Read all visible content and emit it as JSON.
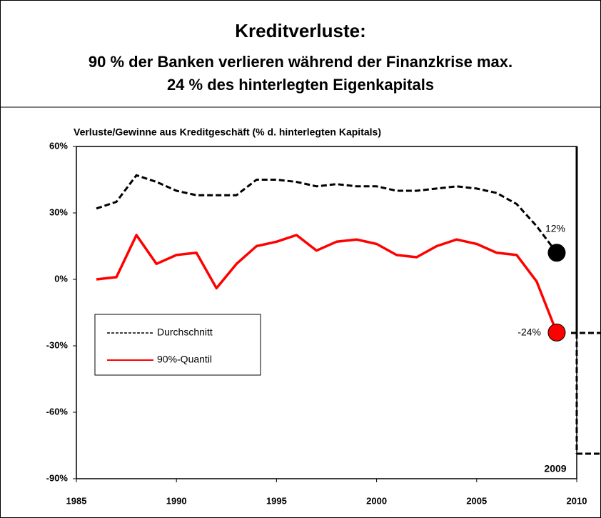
{
  "chart_data": {
    "type": "line",
    "title": "Kreditverluste:",
    "subtitle": [
      "90 % der Banken verlieren während der Finanzkrise max.",
      "24 % des hinterlegten Eigenkapitals"
    ],
    "y_axis_label": "Verluste/Gewinne aus Kreditgeschäft (% d. hinterlegten Kapitals)",
    "x": [
      1986,
      1987,
      1988,
      1989,
      1990,
      1991,
      1992,
      1993,
      1994,
      1995,
      1996,
      1997,
      1998,
      1999,
      2000,
      2001,
      2002,
      2003,
      2004,
      2005,
      2006,
      2007,
      2008,
      2009
    ],
    "series": [
      {
        "name": "Durchschnitt",
        "color": "#000000",
        "dash": true,
        "values": [
          32,
          35,
          47,
          44,
          40,
          38,
          38,
          38,
          45,
          45,
          44,
          42,
          43,
          42,
          42,
          40,
          40,
          41,
          42,
          41,
          39,
          34,
          24,
          12
        ]
      },
      {
        "name": "90%-Quantil",
        "color": "#ff0000",
        "dash": false,
        "values": [
          0,
          1,
          20,
          7,
          11,
          12,
          -4,
          7,
          15,
          17,
          20,
          13,
          17,
          18,
          16,
          11,
          10,
          15,
          18,
          16,
          12,
          11,
          -1,
          -24
        ]
      }
    ],
    "annotations": [
      "12%",
      "-24%",
      "2009"
    ],
    "xlim": [
      1985,
      2010
    ],
    "xticks": [
      1985,
      1990,
      1995,
      2000,
      2005,
      2010
    ],
    "ylim": [
      -90,
      60
    ],
    "yticks": [
      {
        "value": 60,
        "label": "60%"
      },
      {
        "value": 30,
        "label": "30%"
      },
      {
        "value": 0,
        "label": "0%"
      },
      {
        "value": -30,
        "label": "-30%"
      },
      {
        "value": -60,
        "label": "-60%"
      },
      {
        "value": -90,
        "label": "-90%"
      }
    ]
  }
}
